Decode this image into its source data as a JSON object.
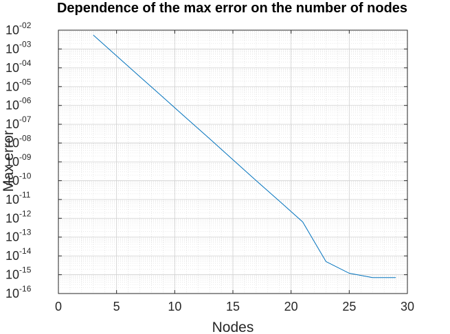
{
  "chart_data": {
    "type": "line",
    "title": "Dependence of the max error on the number of nodes",
    "xlabel": "Nodes",
    "ylabel": "Max error",
    "xlim": [
      0,
      30
    ],
    "ylim": [
      1e-16,
      0.01
    ],
    "yscale": "log",
    "grid": true,
    "minor_grid": true,
    "x_ticks": [
      "0",
      "5",
      "10",
      "15",
      "20",
      "25",
      "30"
    ],
    "y_ticks": [
      {
        "base": "10",
        "exp": "-16"
      },
      {
        "base": "10",
        "exp": "-15"
      },
      {
        "base": "10",
        "exp": "-14"
      },
      {
        "base": "10",
        "exp": "-13"
      },
      {
        "base": "10",
        "exp": "-12"
      },
      {
        "base": "10",
        "exp": "-11"
      },
      {
        "base": "10",
        "exp": "-10"
      },
      {
        "base": "10",
        "exp": "-09"
      },
      {
        "base": "10",
        "exp": "-08"
      },
      {
        "base": "10",
        "exp": "-07"
      },
      {
        "base": "10",
        "exp": "-06"
      },
      {
        "base": "10",
        "exp": "-05"
      },
      {
        "base": "10",
        "exp": "-04"
      },
      {
        "base": "10",
        "exp": "-03"
      },
      {
        "base": "10",
        "exp": "-02"
      }
    ],
    "series": [
      {
        "color": "#0072bd",
        "x": [
          3,
          5,
          7,
          9,
          11,
          13,
          15,
          17,
          19,
          21,
          23,
          25,
          27,
          29
        ],
        "y": [
          0.0055,
          0.00043,
          3.4e-05,
          2.7e-06,
          2.1e-07,
          1.7e-08,
          1.3e-09,
          1e-10,
          8.2e-12,
          6.4e-13,
          5e-15,
          1.2e-15,
          7e-16,
          7e-16
        ]
      }
    ]
  }
}
